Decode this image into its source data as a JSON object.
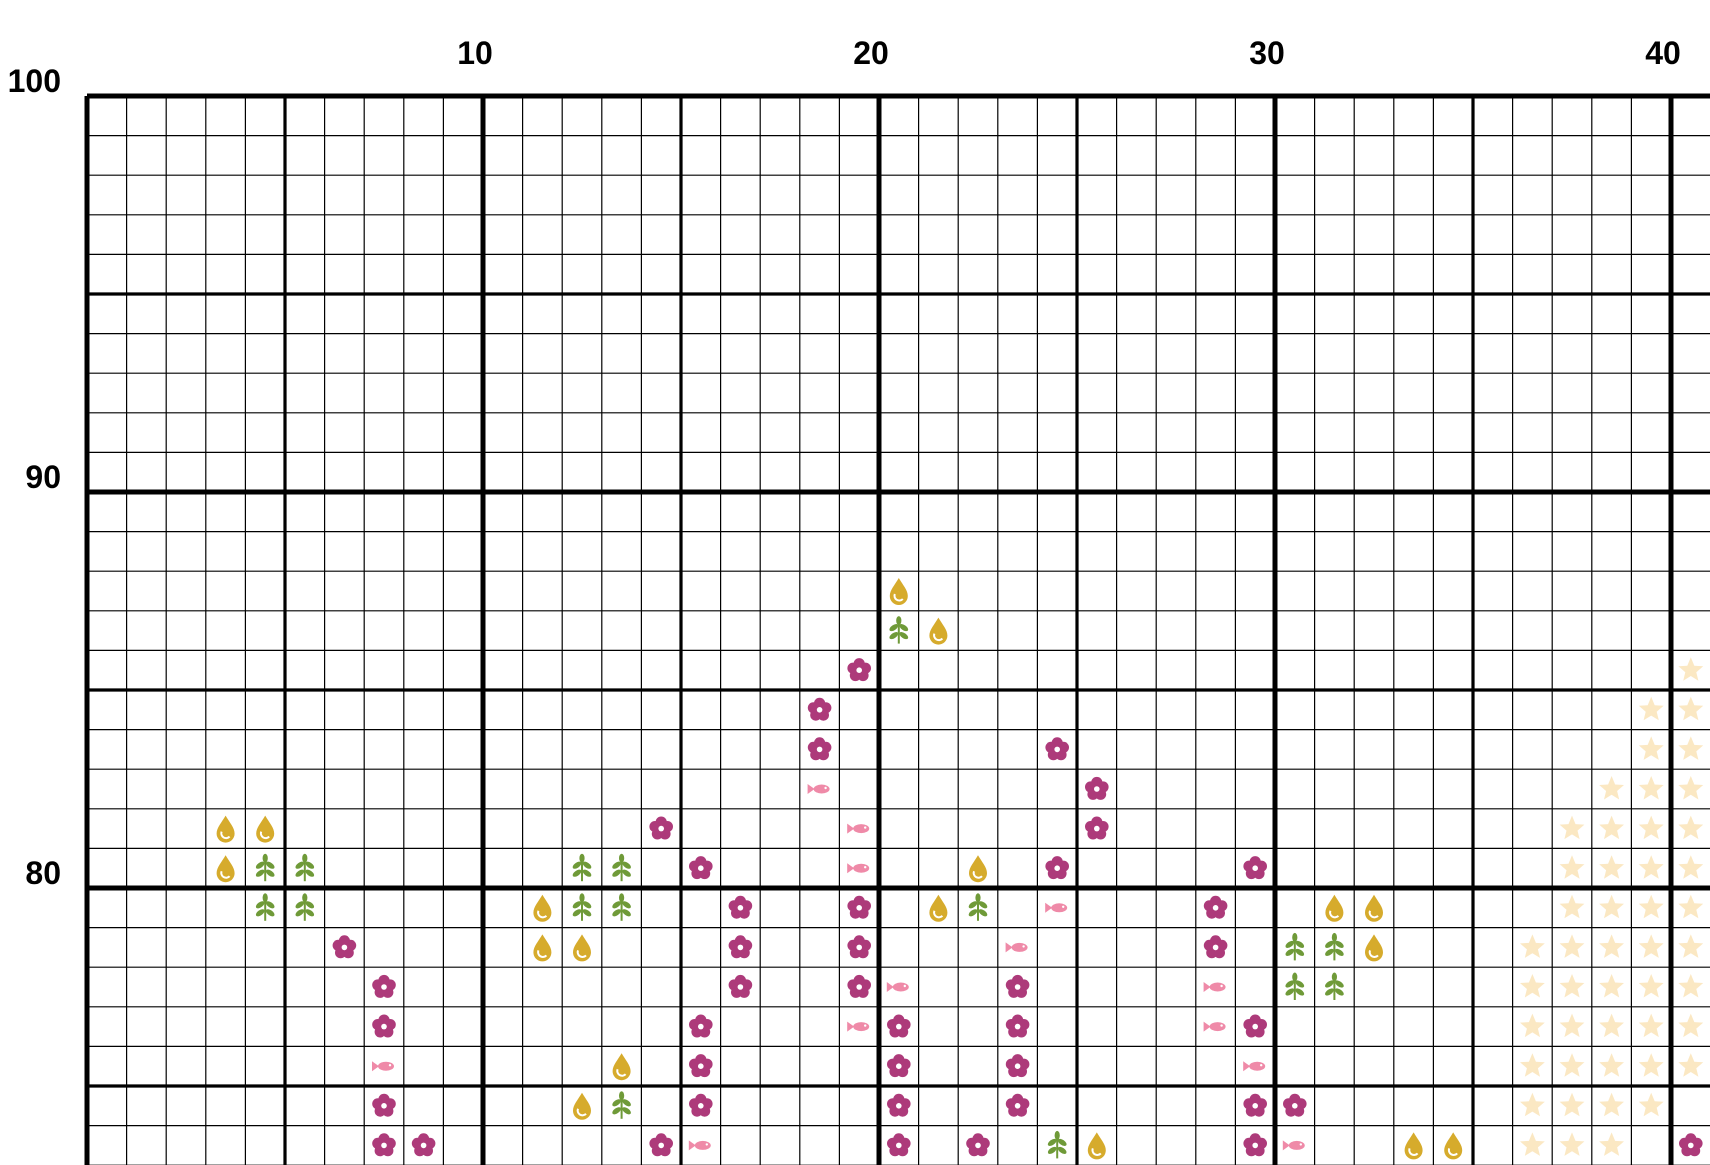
{
  "pattern": {
    "column_labels": [
      10,
      20,
      30,
      40
    ],
    "row_labels": [
      100,
      90,
      80
    ],
    "symbols": [
      {
        "symbol": "flower",
        "color": "#ad3a7a",
        "cells": [
          [
            20,
            86
          ],
          [
            19,
            85
          ],
          [
            19,
            84
          ],
          [
            25,
            84
          ],
          [
            26,
            83
          ],
          [
            15,
            82
          ],
          [
            26,
            82
          ],
          [
            16,
            81
          ],
          [
            25,
            81
          ],
          [
            30,
            81
          ],
          [
            17,
            80
          ],
          [
            20,
            80
          ],
          [
            29,
            80
          ],
          [
            7,
            79
          ],
          [
            17,
            79
          ],
          [
            20,
            79
          ],
          [
            29,
            79
          ],
          [
            8,
            78
          ],
          [
            17,
            78
          ],
          [
            20,
            78
          ],
          [
            24,
            78
          ],
          [
            8,
            77
          ],
          [
            16,
            77
          ],
          [
            21,
            77
          ],
          [
            24,
            77
          ],
          [
            30,
            77
          ],
          [
            16,
            76
          ],
          [
            21,
            76
          ],
          [
            24,
            76
          ],
          [
            8,
            75
          ],
          [
            16,
            75
          ],
          [
            21,
            75
          ],
          [
            24,
            75
          ],
          [
            30,
            75
          ],
          [
            31,
            75
          ],
          [
            8,
            74
          ],
          [
            9,
            74
          ],
          [
            15,
            74
          ],
          [
            21,
            74
          ],
          [
            23,
            74
          ],
          [
            30,
            74
          ],
          [
            41,
            74
          ]
        ]
      },
      {
        "symbol": "drop",
        "color": "#d6ab2c",
        "cells": [
          [
            21,
            88
          ],
          [
            22,
            87
          ],
          [
            4,
            82
          ],
          [
            5,
            82
          ],
          [
            4,
            81
          ],
          [
            23,
            81
          ],
          [
            12,
            80
          ],
          [
            22,
            80
          ],
          [
            32,
            80
          ],
          [
            33,
            80
          ],
          [
            12,
            79
          ],
          [
            13,
            79
          ],
          [
            33,
            79
          ],
          [
            14,
            76
          ],
          [
            13,
            75
          ],
          [
            26,
            74
          ],
          [
            34,
            74
          ],
          [
            35,
            74
          ]
        ]
      },
      {
        "symbol": "leaf",
        "color": "#6f9a38",
        "cells": [
          [
            21,
            87
          ],
          [
            5,
            81
          ],
          [
            6,
            81
          ],
          [
            13,
            81
          ],
          [
            14,
            81
          ],
          [
            5,
            80
          ],
          [
            6,
            80
          ],
          [
            13,
            80
          ],
          [
            14,
            80
          ],
          [
            23,
            80
          ],
          [
            31,
            79
          ],
          [
            32,
            79
          ],
          [
            31,
            78
          ],
          [
            32,
            78
          ],
          [
            14,
            75
          ],
          [
            25,
            74
          ]
        ]
      },
      {
        "symbol": "fish",
        "color": "#ef8aa8",
        "cells": [
          [
            19,
            83
          ],
          [
            20,
            82
          ],
          [
            20,
            81
          ],
          [
            25,
            80
          ],
          [
            24,
            79
          ],
          [
            21,
            78
          ],
          [
            29,
            78
          ],
          [
            20,
            77
          ],
          [
            29,
            77
          ],
          [
            8,
            76
          ],
          [
            30,
            76
          ],
          [
            16,
            74
          ],
          [
            31,
            74
          ]
        ]
      },
      {
        "symbol": "star",
        "color": "#fbe8c3",
        "cells": [
          [
            41,
            86
          ],
          [
            40,
            85
          ],
          [
            41,
            85
          ],
          [
            40,
            84
          ],
          [
            41,
            84
          ],
          [
            39,
            83
          ],
          [
            40,
            83
          ],
          [
            41,
            83
          ],
          [
            38,
            82
          ],
          [
            39,
            82
          ],
          [
            40,
            82
          ],
          [
            41,
            82
          ],
          [
            38,
            81
          ],
          [
            39,
            81
          ],
          [
            40,
            81
          ],
          [
            41,
            81
          ],
          [
            38,
            80
          ],
          [
            39,
            80
          ],
          [
            40,
            80
          ],
          [
            41,
            80
          ],
          [
            37,
            79
          ],
          [
            38,
            79
          ],
          [
            39,
            79
          ],
          [
            40,
            79
          ],
          [
            41,
            79
          ],
          [
            37,
            78
          ],
          [
            38,
            78
          ],
          [
            39,
            78
          ],
          [
            40,
            78
          ],
          [
            41,
            78
          ],
          [
            37,
            77
          ],
          [
            38,
            77
          ],
          [
            39,
            77
          ],
          [
            40,
            77
          ],
          [
            41,
            77
          ],
          [
            37,
            76
          ],
          [
            38,
            76
          ],
          [
            39,
            76
          ],
          [
            40,
            76
          ],
          [
            41,
            76
          ],
          [
            37,
            75
          ],
          [
            38,
            75
          ],
          [
            39,
            75
          ],
          [
            40,
            75
          ],
          [
            37,
            74
          ],
          [
            38,
            74
          ],
          [
            39,
            74
          ]
        ]
      }
    ]
  }
}
